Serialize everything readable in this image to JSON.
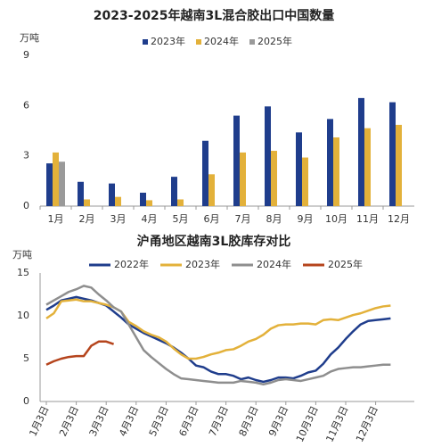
{
  "chart_data": [
    {
      "type": "bar",
      "title": "2023-2025年越南3L混合胶出口中国数量",
      "y_label": "万吨",
      "categories": [
        "1月",
        "2月",
        "3月",
        "4月",
        "5月",
        "6月",
        "7月",
        "8月",
        "9月",
        "10月",
        "11月",
        "12月"
      ],
      "series": [
        {
          "name": "2023年",
          "color": "#1f3d8c",
          "values": [
            2.55,
            1.45,
            1.35,
            0.8,
            1.75,
            3.9,
            5.4,
            5.95,
            4.4,
            5.2,
            6.45,
            6.2
          ]
        },
        {
          "name": "2024年",
          "color": "#e3b13a",
          "values": [
            3.2,
            0.4,
            0.55,
            0.35,
            0.4,
            1.9,
            3.2,
            3.3,
            2.9,
            4.1,
            4.65,
            4.85
          ]
        },
        {
          "name": "2025年",
          "color": "#9a9a9a",
          "values": [
            2.65,
            null,
            null,
            null,
            null,
            null,
            null,
            null,
            null,
            null,
            null,
            null
          ]
        }
      ],
      "ylim": [
        0,
        9
      ],
      "yticks": [
        0,
        3,
        6,
        9
      ]
    },
    {
      "type": "line",
      "title": "沪甬地区越南3L胶库存对比",
      "y_label": "万吨",
      "categories": [
        "1月3日",
        null,
        null,
        null,
        "2月3日",
        null,
        null,
        null,
        "3月3日",
        null,
        null,
        null,
        "4月3日",
        null,
        null,
        null,
        "5月3日",
        null,
        null,
        null,
        "6月3日",
        null,
        null,
        null,
        "7月3日",
        null,
        null,
        null,
        "8月3日",
        null,
        null,
        null,
        "9月3日",
        null,
        null,
        null,
        "10月3日",
        null,
        null,
        null,
        "11月3日",
        null,
        null,
        null,
        "12月3日",
        null,
        null
      ],
      "series": [
        {
          "name": "2022年",
          "color": "#1f3d8c",
          "values": [
            10.7,
            11.2,
            11.8,
            12.0,
            12.2,
            12.0,
            11.8,
            11.5,
            11.2,
            10.5,
            9.8,
            9.0,
            8.5,
            8.0,
            7.6,
            7.2,
            6.8,
            6.3,
            5.7,
            5.0,
            4.2,
            4.0,
            3.5,
            3.2,
            3.2,
            3.0,
            2.6,
            2.8,
            2.5,
            2.3,
            2.5,
            2.8,
            2.8,
            2.7,
            3.0,
            3.4,
            3.6,
            4.4,
            5.5,
            6.3,
            7.3,
            8.2,
            9.0,
            9.4,
            9.5,
            9.6,
            9.7
          ]
        },
        {
          "name": "2023年",
          "color": "#e3b13a",
          "values": [
            9.7,
            10.3,
            11.7,
            11.8,
            11.9,
            11.7,
            11.7,
            11.5,
            11.3,
            11.0,
            10.5,
            9.3,
            8.8,
            8.2,
            7.8,
            7.5,
            7.0,
            6.2,
            5.5,
            5.0,
            5.0,
            5.2,
            5.5,
            5.7,
            6.0,
            6.1,
            6.5,
            7.0,
            7.3,
            7.8,
            8.5,
            8.9,
            9.0,
            9.0,
            9.1,
            9.1,
            9.0,
            9.5,
            9.6,
            9.5,
            9.8,
            10.1,
            10.3,
            10.6,
            10.9,
            11.1,
            11.2
          ]
        },
        {
          "name": "2024年",
          "color": "#8e8e8e",
          "values": [
            11.3,
            11.8,
            12.3,
            12.8,
            13.1,
            13.5,
            13.3,
            12.5,
            11.8,
            11.0,
            10.5,
            9.0,
            7.5,
            6.0,
            5.2,
            4.5,
            3.8,
            3.2,
            2.7,
            2.6,
            2.5,
            2.4,
            2.3,
            2.2,
            2.2,
            2.2,
            2.4,
            2.3,
            2.2,
            2.0,
            2.2,
            2.5,
            2.6,
            2.5,
            2.4,
            2.6,
            2.8,
            3.0,
            3.5,
            3.8,
            3.9,
            4.0,
            4.0,
            4.1,
            4.2,
            4.3,
            4.3
          ]
        },
        {
          "name": "2025年",
          "color": "#b5441c",
          "values": [
            4.3,
            4.7,
            5.0,
            5.2,
            5.3,
            5.3,
            6.5,
            7.0,
            7.0,
            6.7,
            null,
            null,
            null,
            null,
            null,
            null,
            null,
            null,
            null,
            null,
            null,
            null,
            null,
            null,
            null,
            null,
            null,
            null,
            null,
            null,
            null,
            null,
            null,
            null,
            null,
            null,
            null,
            null,
            null,
            null,
            null,
            null,
            null,
            null,
            null,
            null,
            null
          ]
        }
      ],
      "ylim": [
        0,
        15
      ],
      "yticks": [
        0,
        5,
        10,
        15
      ]
    }
  ]
}
